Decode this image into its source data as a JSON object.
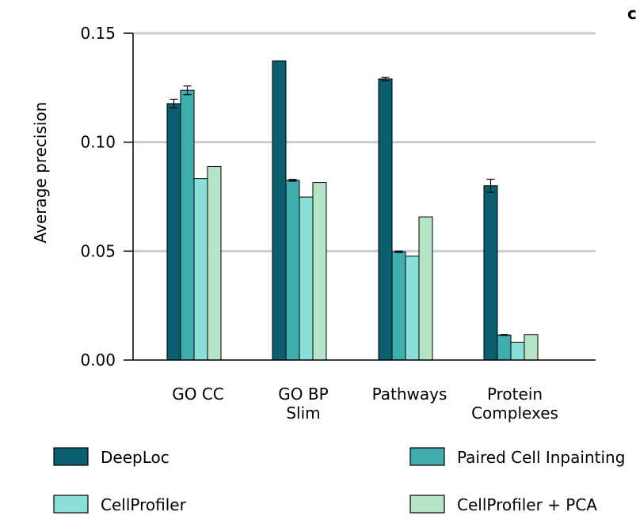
{
  "panel_letter": "c",
  "chart_data": {
    "type": "bar",
    "ylabel": "Average precision",
    "ylim": [
      0,
      0.15
    ],
    "yticks": [
      0.0,
      0.05,
      0.1,
      0.15
    ],
    "ytick_labels": [
      "0.00",
      "0.05",
      "0.10",
      "0.15"
    ],
    "grid": "horizontal",
    "categories": [
      [
        "GO CC"
      ],
      [
        "GO BP",
        "Slim"
      ],
      [
        "Pathways"
      ],
      [
        "Protein",
        "Complexes"
      ]
    ],
    "series": [
      {
        "name": "DeepLoc",
        "color": "#0a5f6e",
        "values": [
          0.1177,
          0.1373,
          0.129,
          0.08
        ],
        "errors": [
          0.002,
          0.0,
          0.0008,
          0.003
        ]
      },
      {
        "name": "Paired Cell Inpainting",
        "color": "#3fadad",
        "values": [
          0.1238,
          0.0825,
          0.0497,
          0.0115
        ],
        "errors": [
          0.002,
          0.0004,
          0.0003,
          0.0002
        ]
      },
      {
        "name": "CellProfiler",
        "color": "#8ae0d8",
        "values": [
          0.0833,
          0.0748,
          0.0477,
          0.0082
        ],
        "errors": [
          0,
          0,
          0,
          0
        ]
      },
      {
        "name": "CellProfiler + PCA",
        "color": "#b5e4c7",
        "values": [
          0.0888,
          0.0815,
          0.0657,
          0.0117
        ],
        "errors": [
          0,
          0,
          0,
          0
        ]
      }
    ],
    "legend_placement": "bottom"
  }
}
